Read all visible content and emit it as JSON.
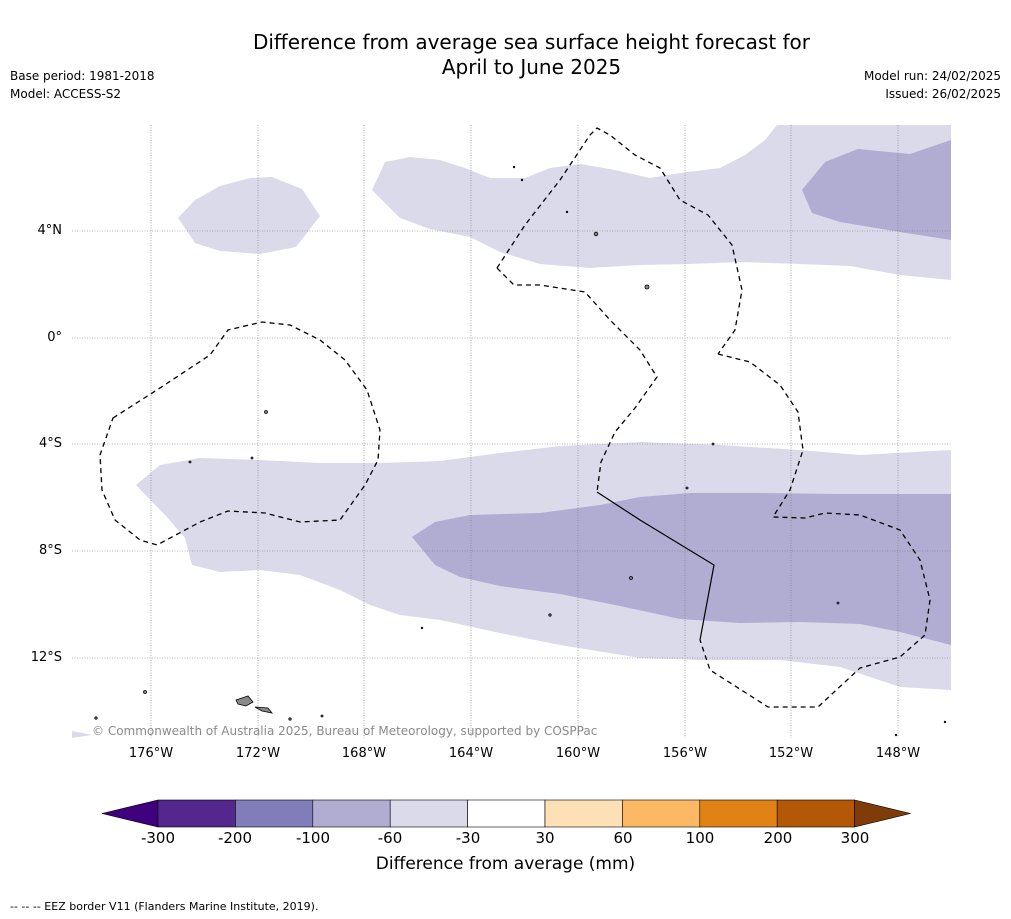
{
  "title": {
    "line1": "Difference from average sea surface height forecast for",
    "line2": "April to June 2025"
  },
  "meta": {
    "base_period": "Base period: 1981-2018",
    "model": "Model: ACCESS-S2",
    "model_run": "Model run: 24/02/2025",
    "issued": "Issued: 26/02/2025"
  },
  "map": {
    "lat_labels": [
      "4°N",
      "0°",
      "4°S",
      "8°S",
      "12°S"
    ],
    "lon_labels": [
      "176°W",
      "172°W",
      "168°W",
      "164°W",
      "160°W",
      "156°W",
      "152°W",
      "148°W"
    ],
    "copyright": "© Commonwealth of Australia 2025, Bureau of Meteorology, supported by COSPPac",
    "colors": {
      "ocean": "#ffffff",
      "anomaly_light": "#dadaeb",
      "anomaly_medium": "#b1acd2",
      "land": "#888888",
      "grid": "#777777"
    }
  },
  "colorbar": {
    "ticks": [
      "-300",
      "-200",
      "-100",
      "-60",
      "-30",
      "30",
      "60",
      "100",
      "200",
      "300"
    ],
    "colors": [
      "#3f007d",
      "#54278f",
      "#807dba",
      "#b1acd2",
      "#dadaeb",
      "#ffffff",
      "#fee0b6",
      "#fdb863",
      "#e08214",
      "#b35806",
      "#7f3b08"
    ],
    "label": "Difference from average (mm)"
  },
  "footnote": "--  --  -- EEZ border V11 (Flanders Marine Institute, 2019)."
}
